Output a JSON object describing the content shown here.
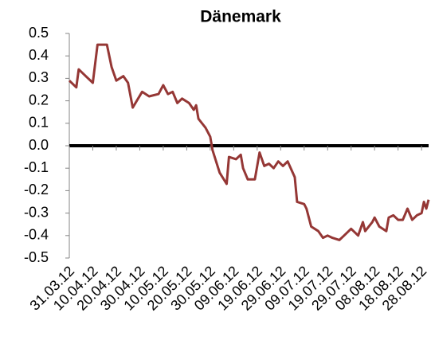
{
  "chart_data": {
    "type": "line",
    "title": "Dänemark",
    "x": [
      "31.03.12",
      "03.04.12",
      "04.04.12",
      "07.04.12",
      "10.04.12",
      "12.04.12",
      "16.04.12",
      "18.04.12",
      "20.04.12",
      "23.04.12",
      "25.04.12",
      "27.04.12",
      "01.05.12",
      "04.05.12",
      "08.05.12",
      "10.05.12",
      "12.05.12",
      "14.05.12",
      "16.05.12",
      "18.05.12",
      "21.05.12",
      "23.05.12",
      "24.05.12",
      "25.05.12",
      "28.05.12",
      "30.05.12",
      "31.05.12",
      "03.06.12",
      "06.06.12",
      "07.06.12",
      "10.06.12",
      "12.06.12",
      "13.06.12",
      "15.06.12",
      "18.06.12",
      "20.06.12",
      "22.06.12",
      "24.06.12",
      "26.06.12",
      "28.06.12",
      "30.06.12",
      "02.07.12",
      "05.07.12",
      "06.07.12",
      "09.07.12",
      "10.07.12",
      "12.07.12",
      "15.07.12",
      "17.07.12",
      "19.07.12",
      "21.07.12",
      "24.07.12",
      "26.07.12",
      "29.07.12",
      "01.08.12",
      "03.08.12",
      "04.08.12",
      "07.08.12",
      "08.08.12",
      "10.08.12",
      "13.08.12",
      "14.08.12",
      "16.08.12",
      "18.08.12",
      "20.08.12",
      "22.08.12",
      "24.08.12",
      "26.08.12",
      "28.08.12",
      "29.08.12",
      "30.08.12",
      "31.08.12"
    ],
    "series": [
      {
        "name": "Dänemark",
        "color": "#953735",
        "values": [
          0.29,
          0.26,
          0.34,
          0.31,
          0.28,
          0.45,
          0.45,
          0.35,
          0.29,
          0.31,
          0.28,
          0.17,
          0.24,
          0.22,
          0.23,
          0.27,
          0.23,
          0.24,
          0.19,
          0.21,
          0.19,
          0.16,
          0.18,
          0.12,
          0.08,
          0.04,
          -0.02,
          -0.12,
          -0.17,
          -0.05,
          -0.06,
          -0.04,
          -0.1,
          -0.15,
          -0.15,
          -0.03,
          -0.09,
          -0.08,
          -0.1,
          -0.07,
          -0.09,
          -0.07,
          -0.14,
          -0.25,
          -0.26,
          -0.28,
          -0.36,
          -0.38,
          -0.41,
          -0.4,
          -0.41,
          -0.42,
          -0.4,
          -0.37,
          -0.4,
          -0.34,
          -0.38,
          -0.34,
          -0.32,
          -0.36,
          -0.38,
          -0.32,
          -0.31,
          -0.33,
          -0.33,
          -0.28,
          -0.33,
          -0.31,
          -0.3,
          -0.25,
          -0.28,
          -0.24
        ]
      }
    ],
    "xlim": [
      "31.03.12",
      "31.08.12"
    ],
    "xticks": [
      "31.03.12",
      "10.04.12",
      "20.04.12",
      "30.04.12",
      "10.05.12",
      "20.05.12",
      "30.05.12",
      "09.06.12",
      "19.06.12",
      "29.06.12",
      "09.07.12",
      "19.07.12",
      "29.07.12",
      "08.08.12",
      "18.08.12",
      "28.08.12"
    ],
    "ylim": [
      -0.5,
      0.5
    ],
    "yticks": [
      -0.5,
      -0.4,
      -0.3,
      -0.2,
      -0.1,
      {
        "value": 0,
        "label": "0.0"
      },
      0.1,
      0.2,
      0.3,
      0.4,
      0.5
    ],
    "grid": false
  }
}
